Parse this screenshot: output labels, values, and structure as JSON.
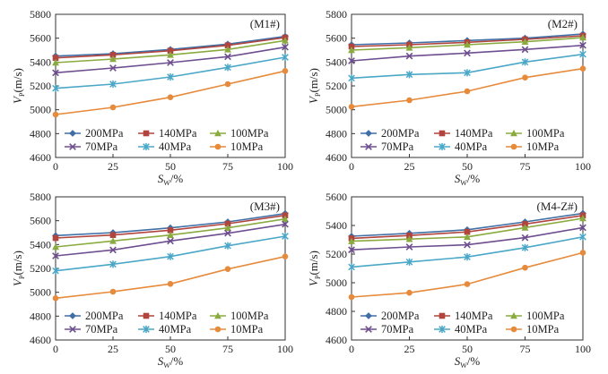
{
  "chart_data": [
    {
      "type": "line",
      "title": "(M1#)",
      "xlabel": "S_W/%",
      "ylabel": "V_P(m/s)",
      "x": [
        0,
        25,
        50,
        75,
        100
      ],
      "xticks": [
        "0",
        "25",
        "50",
        "75",
        "100"
      ],
      "ylim": [
        4600,
        5800
      ],
      "yticks": [
        "4600",
        "4800",
        "5000",
        "5200",
        "5400",
        "5600",
        "5800"
      ],
      "series": [
        {
          "name": "200MPa",
          "color": "#3f6fa6",
          "marker": "diamond",
          "values": [
            5450,
            5470,
            5505,
            5550,
            5615
          ]
        },
        {
          "name": "140MPa",
          "color": "#b1443c",
          "marker": "square",
          "values": [
            5435,
            5460,
            5495,
            5540,
            5605
          ]
        },
        {
          "name": "100MPa",
          "color": "#8aab3f",
          "marker": "triangle",
          "values": [
            5395,
            5425,
            5460,
            5505,
            5580
          ]
        },
        {
          "name": "70MPa",
          "color": "#6e4e8f",
          "marker": "x",
          "values": [
            5310,
            5350,
            5395,
            5445,
            5525
          ]
        },
        {
          "name": "40MPa",
          "color": "#4aa7c7",
          "marker": "star",
          "values": [
            5180,
            5215,
            5275,
            5355,
            5440
          ]
        },
        {
          "name": "10MPa",
          "color": "#e68a3c",
          "marker": "circle",
          "values": [
            4960,
            5020,
            5105,
            5215,
            5325
          ]
        }
      ]
    },
    {
      "type": "line",
      "title": "(M2#)",
      "xlabel": "S_W/%",
      "ylabel": "V_P(m/s)",
      "x": [
        0,
        25,
        50,
        75,
        100
      ],
      "xticks": [
        "0",
        "25",
        "50",
        "75",
        "100"
      ],
      "ylim": [
        4600,
        5800
      ],
      "yticks": [
        "4600",
        "4800",
        "5000",
        "5200",
        "5400",
        "5600",
        "5800"
      ],
      "series": [
        {
          "name": "200MPa",
          "color": "#3f6fa6",
          "marker": "diamond",
          "values": [
            5545,
            5560,
            5580,
            5600,
            5635
          ]
        },
        {
          "name": "140MPa",
          "color": "#b1443c",
          "marker": "square",
          "values": [
            5530,
            5545,
            5565,
            5590,
            5620
          ]
        },
        {
          "name": "100MPa",
          "color": "#8aab3f",
          "marker": "triangle",
          "values": [
            5500,
            5520,
            5545,
            5570,
            5605
          ]
        },
        {
          "name": "70MPa",
          "color": "#6e4e8f",
          "marker": "x",
          "values": [
            5410,
            5450,
            5475,
            5505,
            5540
          ]
        },
        {
          "name": "40MPa",
          "color": "#4aa7c7",
          "marker": "star",
          "values": [
            5265,
            5295,
            5310,
            5400,
            5465
          ]
        },
        {
          "name": "10MPa",
          "color": "#e68a3c",
          "marker": "circle",
          "values": [
            5025,
            5080,
            5155,
            5270,
            5345
          ]
        }
      ]
    },
    {
      "type": "line",
      "title": "(M3#)",
      "xlabel": "S_W/%",
      "ylabel": "V_P(m/s)",
      "x": [
        0,
        25,
        50,
        75,
        100
      ],
      "xticks": [
        "0",
        "25",
        "50",
        "75",
        "100"
      ],
      "ylim": [
        4600,
        5800
      ],
      "yticks": [
        "4600",
        "4800",
        "5000",
        "5200",
        "5400",
        "5600",
        "5800"
      ],
      "series": [
        {
          "name": "200MPa",
          "color": "#3f6fa6",
          "marker": "diamond",
          "values": [
            5475,
            5500,
            5540,
            5590,
            5660
          ]
        },
        {
          "name": "140MPa",
          "color": "#b1443c",
          "marker": "square",
          "values": [
            5455,
            5480,
            5520,
            5575,
            5645
          ]
        },
        {
          "name": "100MPa",
          "color": "#8aab3f",
          "marker": "triangle",
          "values": [
            5380,
            5430,
            5480,
            5540,
            5615
          ]
        },
        {
          "name": "70MPa",
          "color": "#6e4e8f",
          "marker": "x",
          "values": [
            5305,
            5355,
            5430,
            5495,
            5570
          ]
        },
        {
          "name": "40MPa",
          "color": "#4aa7c7",
          "marker": "star",
          "values": [
            5180,
            5235,
            5300,
            5390,
            5470
          ]
        },
        {
          "name": "10MPa",
          "color": "#e68a3c",
          "marker": "circle",
          "values": [
            4950,
            5005,
            5070,
            5195,
            5300
          ]
        }
      ]
    },
    {
      "type": "line",
      "title": "(M4-Z#)",
      "xlabel": "S_W/%",
      "ylabel": "V_P(m/s)",
      "x": [
        0,
        25,
        50,
        75,
        100
      ],
      "xticks": [
        "0",
        "25",
        "50",
        "75",
        "100"
      ],
      "ylim": [
        4600,
        5600
      ],
      "yticks": [
        "4600",
        "4800",
        "5000",
        "5200",
        "5400",
        "5600"
      ],
      "series": [
        {
          "name": "200MPa",
          "color": "#3f6fa6",
          "marker": "diamond",
          "values": [
            5325,
            5345,
            5370,
            5425,
            5485
          ]
        },
        {
          "name": "140MPa",
          "color": "#b1443c",
          "marker": "square",
          "values": [
            5310,
            5330,
            5355,
            5410,
            5470
          ]
        },
        {
          "name": "100MPa",
          "color": "#8aab3f",
          "marker": "triangle",
          "values": [
            5290,
            5305,
            5320,
            5385,
            5450
          ]
        },
        {
          "name": "70MPa",
          "color": "#6e4e8f",
          "marker": "x",
          "values": [
            5230,
            5250,
            5265,
            5315,
            5385
          ]
        },
        {
          "name": "40MPa",
          "color": "#4aa7c7",
          "marker": "star",
          "values": [
            5110,
            5145,
            5180,
            5245,
            5320
          ]
        },
        {
          "name": "10MPa",
          "color": "#e68a3c",
          "marker": "circle",
          "values": [
            4900,
            4930,
            4990,
            5105,
            5210
          ]
        }
      ]
    }
  ]
}
